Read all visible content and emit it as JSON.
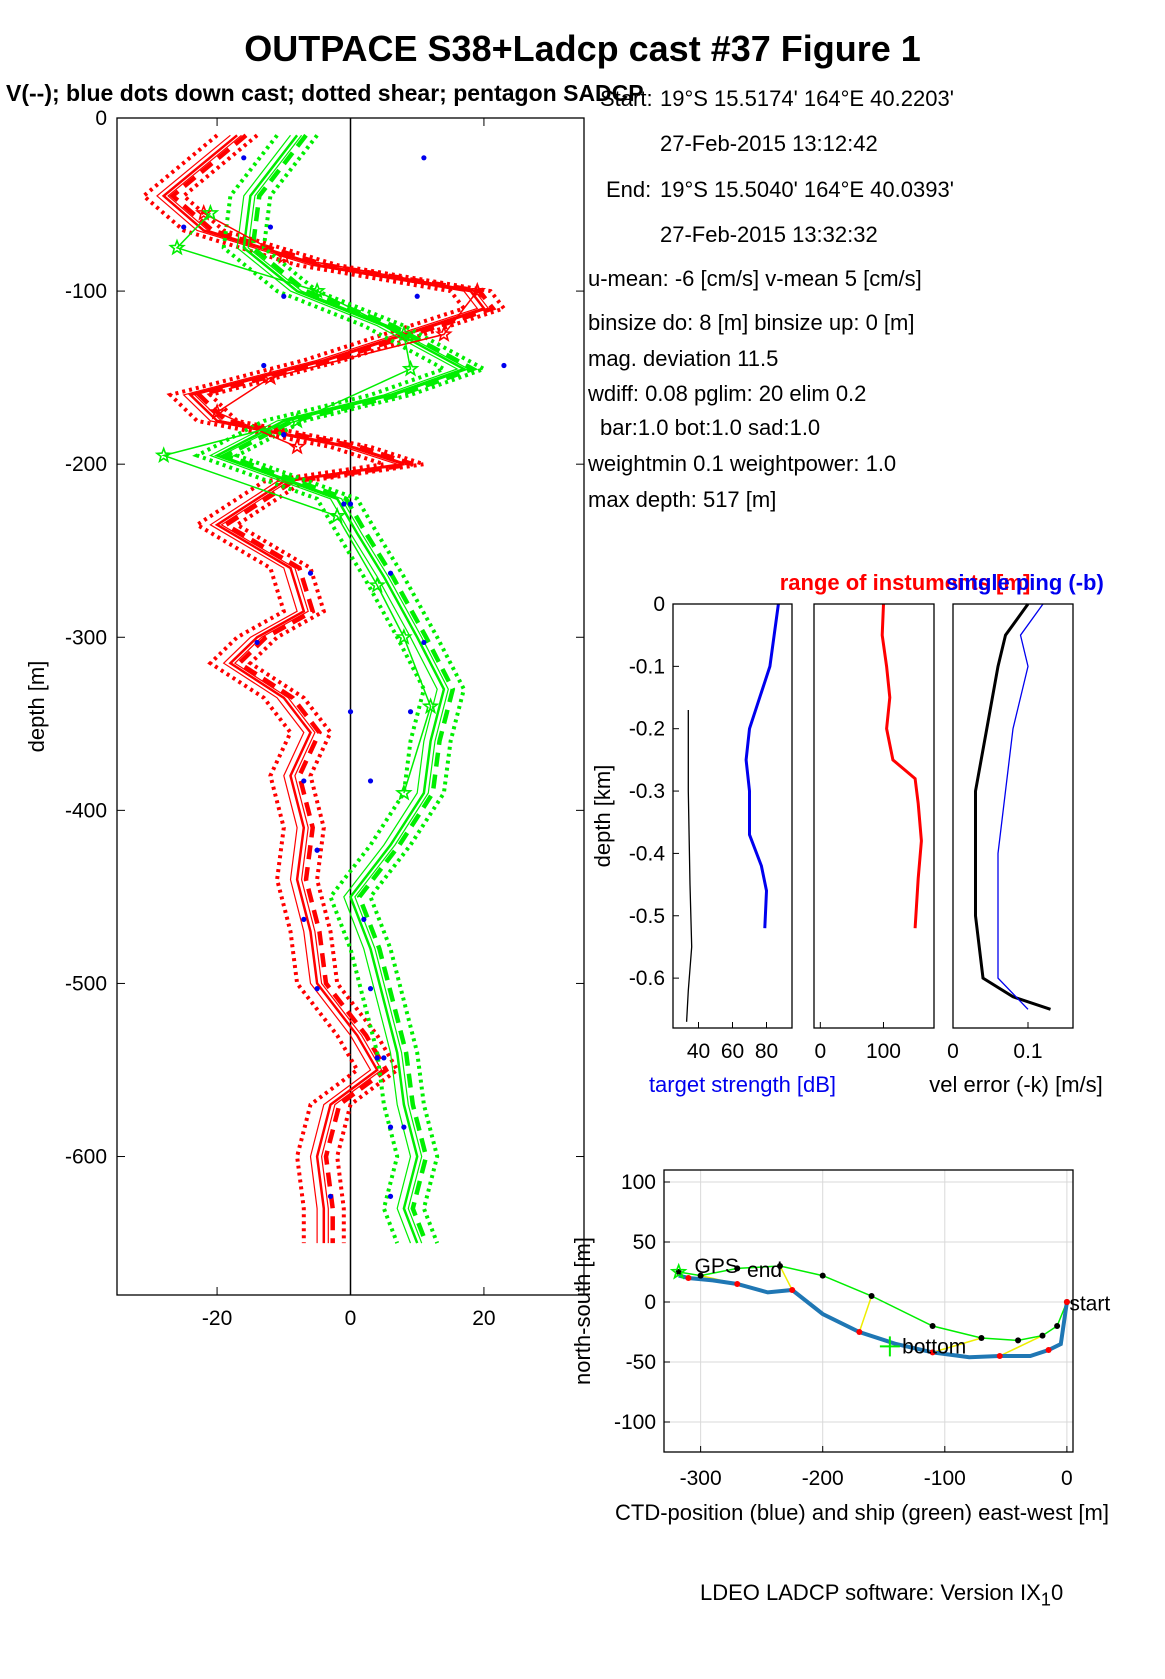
{
  "header": {
    "title": "OUTPACE S38+Ladcp cast #37  Figure 1",
    "subtitle": "V(--); blue dots down cast; dotted shear; pentagon SADCP"
  },
  "info": {
    "start_label": "Start:",
    "start_pos": "19°S 15.5174'      164°E 40.2203'",
    "start_time": "27-Feb-2015 13:12:42",
    "end_label": "End:",
    "end_pos": "19°S 15.5040'      164°E 40.0393'",
    "end_time": "27-Feb-2015 13:32:32",
    "means": "u-mean:  -6 [cm/s]     v-mean   5 [cm/s]",
    "binsize": "binsize do: 8 [m]  binsize up:  0 [m]",
    "magdev": "mag. deviation 11.5",
    "wdiff": "wdiff: 0.08  pglim: 20  elim 0.2",
    "bar": "bar:1.0 bot:1.0 sad:1.0",
    "weight": "weightmin 0.1  weightpower: 1.0",
    "maxdepth": "max depth: 517 [m]"
  },
  "credit": "LDEO LADCP software: Version IX",
  "credit_sub": "1",
  "credit_tail": "0",
  "colors": {
    "u": "#ff0000",
    "v": "#00ee00",
    "blue": "#0000ee",
    "ctd": "#1f77b4",
    "yellow": "#eeee00",
    "black": "#000000"
  },
  "chart_data": [
    {
      "type": "line",
      "name": "velocity-profile",
      "ylabel": "depth [m]",
      "xlim": [
        -35,
        35
      ],
      "ylim": [
        -680,
        0
      ],
      "xticks": [
        -20,
        0,
        20
      ],
      "yticks": [
        0,
        -100,
        -200,
        -300,
        -400,
        -500,
        -600
      ],
      "series": [
        {
          "name": "u",
          "color": "#ff0000",
          "depth": [
            -10,
            -45,
            -65,
            -85,
            -100,
            -110,
            -140,
            -160,
            -175,
            -190,
            -200,
            -210,
            -235,
            -260,
            -285,
            -300,
            -315,
            -335,
            -355,
            -380,
            -410,
            -440,
            -470,
            -500,
            -530,
            -550,
            -570,
            -600,
            -630,
            -650
          ],
          "values": [
            -17,
            -28,
            -22,
            -5,
            18,
            20,
            -4,
            -24,
            -20,
            0,
            8,
            -10,
            -20,
            -9,
            -7,
            -14,
            -18,
            -10,
            -6,
            -9,
            -7,
            -8,
            -6,
            -5,
            1,
            4,
            -3,
            -5,
            -4,
            -4
          ]
        },
        {
          "name": "v",
          "color": "#00ee00",
          "depth": [
            -10,
            -45,
            -75,
            -100,
            -120,
            -145,
            -160,
            -175,
            -195,
            -220,
            -240,
            -265,
            -300,
            -330,
            -360,
            -390,
            -420,
            -450,
            -480,
            -510,
            -540,
            -570,
            -600,
            -630,
            -650
          ],
          "values": [
            -8,
            -15,
            -16,
            -8,
            5,
            17,
            6,
            -10,
            -20,
            -2,
            1,
            5,
            10,
            14,
            12,
            11,
            6,
            0,
            3,
            5,
            7,
            8,
            10,
            8,
            10
          ]
        }
      ],
      "sadcp_u": {
        "depth": [
          -55,
          -80,
          -100,
          -125,
          -150,
          -170,
          -190
        ],
        "values": [
          -22,
          -10,
          19,
          14,
          -12,
          -20,
          -8
        ]
      },
      "sadcp_v": {
        "depth": [
          -55,
          -75,
          -100,
          -125,
          -145,
          -175,
          -195,
          -230,
          -270,
          -300,
          -340,
          -390
        ],
        "values": [
          -21,
          -26,
          -5,
          8,
          9,
          -8,
          -28,
          -2,
          4,
          8,
          12,
          8
        ]
      },
      "downcast_dots": {
        "depth": [
          -23,
          -63,
          -103,
          -143,
          -183,
          -223,
          -263,
          -303,
          -343,
          -383,
          -423,
          -463,
          -503,
          -543,
          -583,
          -623,
          -23,
          -63,
          -103,
          -143,
          -183,
          -223,
          -263,
          -303,
          -343,
          -383,
          -423,
          -463,
          -503,
          -543,
          -583,
          -623
        ],
        "values": [
          -16,
          -25,
          -10,
          -13,
          -10,
          0,
          -6,
          -14,
          0,
          -7,
          -5,
          -7,
          -5,
          4,
          6,
          -3,
          11,
          -12,
          10,
          23,
          -10,
          -1,
          6,
          11,
          9,
          3,
          -5,
          2,
          3,
          5,
          8,
          6
        ]
      }
    },
    {
      "type": "line",
      "name": "target-strength",
      "xlabel": "target strength [dB]",
      "xlim": [
        25,
        95
      ],
      "ylim": [
        -0.68,
        0
      ],
      "xticks": [
        40,
        60,
        80
      ],
      "yticks": [
        0,
        -0.1,
        -0.2,
        -0.3,
        -0.4,
        -0.5,
        -0.6
      ],
      "ylabel": "depth [km]",
      "series": [
        {
          "name": "black",
          "color": "#000000",
          "depth": [
            -0.17,
            -0.3,
            -0.45,
            -0.55,
            -0.62,
            -0.67
          ],
          "values": [
            34,
            34,
            35,
            36,
            34,
            33
          ]
        },
        {
          "name": "blue",
          "color": "#0000ee",
          "depth": [
            0,
            -0.1,
            -0.2,
            -0.25,
            -0.3,
            -0.37,
            -0.42,
            -0.46,
            -0.52
          ],
          "values": [
            87,
            82,
            70,
            68,
            70,
            70,
            77,
            80,
            79
          ]
        }
      ]
    },
    {
      "type": "line",
      "name": "range",
      "title": "range of instuments [m]",
      "xlim": [
        -10,
        180
      ],
      "ylim": [
        -0.68,
        0
      ],
      "xticks": [
        0,
        100
      ],
      "series": [
        {
          "name": "range",
          "color": "#ff0000",
          "depth": [
            0,
            -0.05,
            -0.1,
            -0.15,
            -0.2,
            -0.25,
            -0.28,
            -0.32,
            -0.38,
            -0.44,
            -0.52
          ],
          "values": [
            100,
            98,
            105,
            110,
            105,
            115,
            150,
            155,
            160,
            155,
            150
          ]
        }
      ]
    },
    {
      "type": "line",
      "name": "vel-error",
      "title": "single ping (-b)",
      "xlabel": "vel error (-k) [m/s]",
      "xlim": [
        0,
        0.16
      ],
      "ylim": [
        -0.68,
        0
      ],
      "xticks": [
        0,
        0.1
      ],
      "series": [
        {
          "name": "k",
          "color": "#000000",
          "depth": [
            0,
            -0.05,
            -0.1,
            -0.2,
            -0.3,
            -0.4,
            -0.5,
            -0.6,
            -0.63,
            -0.65
          ],
          "values": [
            0.1,
            0.07,
            0.06,
            0.045,
            0.03,
            0.03,
            0.03,
            0.04,
            0.08,
            0.13
          ]
        },
        {
          "name": "b",
          "color": "#0000ee",
          "depth": [
            0,
            -0.05,
            -0.1,
            -0.2,
            -0.3,
            -0.4,
            -0.5,
            -0.6,
            -0.65
          ],
          "values": [
            0.12,
            0.09,
            0.1,
            0.08,
            0.07,
            0.06,
            0.06,
            0.06,
            0.1
          ]
        }
      ]
    },
    {
      "type": "line",
      "name": "track",
      "xlabel": "CTD-position (blue) and ship (green) east-west [m]",
      "ylabel": "north-south [m]",
      "xlim": [
        -330,
        5
      ],
      "ylim": [
        -125,
        110
      ],
      "xticks": [
        -300,
        -200,
        -100,
        0
      ],
      "yticks": [
        100,
        50,
        0,
        -50,
        -100
      ],
      "labels": {
        "start": "start",
        "end": "end",
        "bottom": "bottom",
        "gps": "GPS"
      },
      "series": [
        {
          "name": "ship",
          "color": "#00ee00",
          "x": [
            0,
            -8,
            -20,
            -40,
            -70,
            -110,
            -160,
            -200,
            -235,
            -270,
            -300,
            -318
          ],
          "y": [
            0,
            -20,
            -28,
            -32,
            -30,
            -20,
            5,
            22,
            30,
            28,
            22,
            25
          ]
        },
        {
          "name": "ctd",
          "color": "#1f77b4",
          "x": [
            0,
            -5,
            -15,
            -30,
            -55,
            -80,
            -110,
            -140,
            -170,
            -200,
            -225,
            -245,
            -270,
            -290,
            -310,
            -318
          ],
          "y": [
            0,
            -35,
            -40,
            -45,
            -45,
            -46,
            -42,
            -35,
            -25,
            -10,
            10,
            8,
            15,
            18,
            20,
            22
          ]
        }
      ]
    }
  ]
}
